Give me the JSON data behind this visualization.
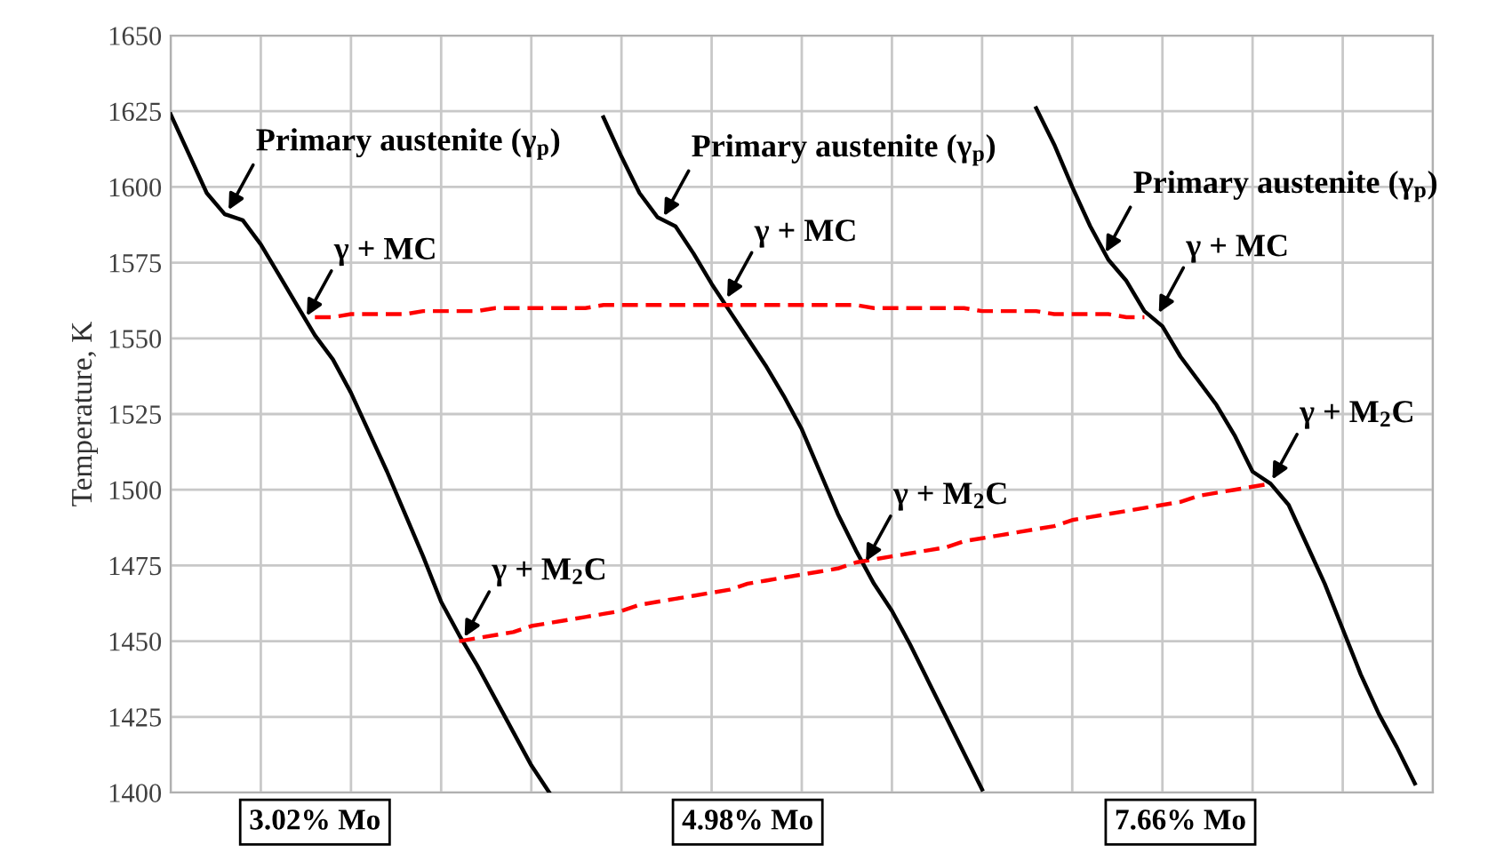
{
  "chart_data": {
    "type": "line",
    "ylabel": "Temperature, K",
    "ylim": [
      1400,
      1650
    ],
    "yticks": [
      1400,
      1425,
      1450,
      1475,
      1500,
      1525,
      1550,
      1575,
      1600,
      1625,
      1650
    ],
    "categories": [
      null,
      null,
      null,
      null,
      null,
      null,
      null,
      null,
      null,
      null,
      null,
      null,
      null,
      null,
      null,
      null,
      null,
      null,
      null,
      null,
      null,
      null,
      null,
      null,
      null,
      null,
      null,
      null,
      null,
      null,
      null,
      null,
      null,
      null,
      null,
      null,
      null,
      null,
      null,
      null,
      null,
      null,
      null,
      null,
      null,
      null,
      null,
      null,
      null,
      null,
      null,
      null,
      null,
      null,
      null,
      null,
      null,
      null,
      null,
      null,
      null,
      null,
      null,
      null,
      null,
      null,
      null,
      null,
      null,
      null,
      null
    ],
    "grid": true,
    "marker": "none",
    "series": [
      {
        "name": "3.02% Mo",
        "color": "#000000",
        "line_style": "solid",
        "values": [
          1624,
          1611,
          1598,
          1591,
          1589,
          1581,
          1571,
          1561,
          1551,
          1543,
          1532,
          1519,
          1506,
          1492,
          1478,
          1463,
          1452,
          1442,
          1431,
          1420,
          1409,
          1400,
          null,
          null,
          null,
          null,
          null,
          null,
          null,
          null,
          null,
          null,
          null,
          null,
          null,
          null,
          null,
          null,
          null,
          null,
          null,
          null,
          null,
          null,
          null,
          null,
          null,
          null,
          null,
          null,
          null,
          null,
          null,
          null,
          null,
          null,
          null,
          null,
          null,
          null,
          null,
          null,
          null,
          null,
          null,
          null,
          null,
          null,
          null,
          null,
          null
        ]
      },
      {
        "name": "4.98% Mo",
        "color": "#000000",
        "line_style": "solid",
        "values": [
          null,
          null,
          null,
          null,
          null,
          null,
          null,
          null,
          null,
          null,
          null,
          null,
          null,
          null,
          null,
          null,
          null,
          null,
          null,
          null,
          null,
          null,
          null,
          null,
          1623,
          1610,
          1598,
          1590,
          1587,
          1578,
          1568,
          1559,
          1550,
          1541,
          1531,
          1520,
          1506,
          1492,
          1480,
          1469,
          1460,
          1449,
          1437,
          1425,
          1413,
          1401,
          null,
          null,
          null,
          null,
          null,
          null,
          null,
          null,
          null,
          null,
          null,
          null,
          null,
          null,
          null,
          null,
          null,
          null,
          null,
          null,
          null,
          null,
          null,
          null,
          null
        ]
      },
      {
        "name": "7.66% Mo",
        "color": "#000000",
        "line_style": "solid",
        "values": [
          null,
          null,
          null,
          null,
          null,
          null,
          null,
          null,
          null,
          null,
          null,
          null,
          null,
          null,
          null,
          null,
          null,
          null,
          null,
          null,
          null,
          null,
          null,
          null,
          null,
          null,
          null,
          null,
          null,
          null,
          null,
          null,
          null,
          null,
          null,
          null,
          null,
          null,
          null,
          null,
          null,
          null,
          null,
          null,
          null,
          null,
          null,
          null,
          1626,
          1614,
          1600,
          1587,
          1576,
          1569,
          1559,
          1554,
          1544,
          1536,
          1528,
          1518,
          1506,
          1502,
          1495,
          1482,
          1469,
          1454,
          1439,
          1426,
          1415,
          1403,
          null
        ]
      },
      {
        "color": "#ff0000",
        "line_style": "dashed",
        "values": [
          null,
          null,
          null,
          null,
          null,
          null,
          null,
          null,
          1557,
          1557,
          1558,
          1558,
          1558,
          1558,
          1559,
          1559,
          1559,
          1559,
          1560,
          1560,
          1560,
          1560,
          1560,
          1560,
          1561,
          1561,
          1561,
          1561,
          1561,
          1561,
          1561,
          1561,
          1561,
          1561,
          1561,
          1561,
          1561,
          1561,
          1561,
          1560,
          1560,
          1560,
          1560,
          1560,
          1560,
          1559,
          1559,
          1559,
          1559,
          1558,
          1558,
          1558,
          1558,
          1557,
          1557,
          null,
          null,
          null,
          null,
          null,
          null,
          null,
          null,
          null,
          null,
          null,
          null,
          null,
          null,
          null,
          null
        ]
      },
      {
        "color": "#ff0000",
        "line_style": "dashed",
        "values": [
          null,
          null,
          null,
          null,
          null,
          null,
          null,
          null,
          null,
          null,
          null,
          null,
          null,
          null,
          null,
          null,
          1450,
          1451,
          1452,
          1453,
          1455,
          1456,
          1457,
          1458,
          1459,
          1460,
          1462,
          1463,
          1464,
          1465,
          1466,
          1467,
          1469,
          1470,
          1471,
          1472,
          1473,
          1474,
          1476,
          1477,
          1478,
          1479,
          1480,
          1481,
          1483,
          1484,
          1485,
          1486,
          1487,
          1488,
          1490,
          1491,
          1492,
          1493,
          1494,
          1495,
          1496,
          1498,
          1499,
          1500,
          1501,
          1502,
          null,
          null,
          null,
          null,
          null,
          null,
          null,
          null,
          null
        ]
      }
    ],
    "annotations": [
      "Primary austenite (γ$_{p}$)",
      "γ + MC",
      "γ + M$_{2}$C",
      "Primary austenite (γ$_{p}$)",
      "γ + MC",
      "γ + M$_{2}$C",
      "Primary austenite (γ$_{p}$)",
      "γ + MC",
      "γ + M$_{2}$C"
    ]
  }
}
